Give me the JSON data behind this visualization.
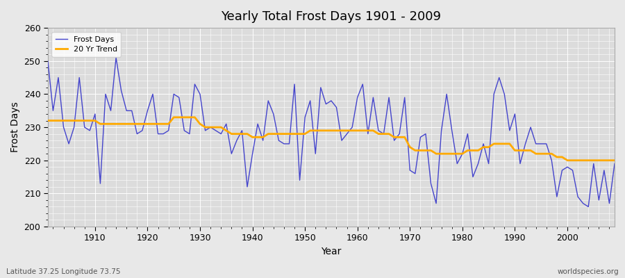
{
  "title": "Yearly Total Frost Days 1901 - 2009",
  "xlabel": "Year",
  "ylabel": "Frost Days",
  "footnote_left": "Latitude 37.25 Longitude 73.75",
  "footnote_right": "worldspecies.org",
  "ylim": [
    200,
    260
  ],
  "xlim": [
    1901,
    2009
  ],
  "bg_color": "#dcdcdc",
  "grid_color": "#ffffff",
  "line_color": "#4444cc",
  "trend_color": "#ffaa00",
  "years": [
    1901,
    1902,
    1903,
    1904,
    1905,
    1906,
    1907,
    1908,
    1909,
    1910,
    1911,
    1912,
    1913,
    1914,
    1915,
    1916,
    1917,
    1918,
    1919,
    1920,
    1921,
    1922,
    1923,
    1924,
    1925,
    1926,
    1927,
    1928,
    1929,
    1930,
    1931,
    1932,
    1933,
    1934,
    1935,
    1936,
    1937,
    1938,
    1939,
    1940,
    1941,
    1942,
    1943,
    1944,
    1945,
    1946,
    1947,
    1948,
    1949,
    1950,
    1951,
    1952,
    1953,
    1954,
    1955,
    1956,
    1957,
    1958,
    1959,
    1960,
    1961,
    1962,
    1963,
    1964,
    1965,
    1966,
    1967,
    1968,
    1969,
    1970,
    1971,
    1972,
    1973,
    1974,
    1975,
    1976,
    1977,
    1978,
    1979,
    1980,
    1981,
    1982,
    1983,
    1984,
    1985,
    1986,
    1987,
    1988,
    1989,
    1990,
    1991,
    1992,
    1993,
    1994,
    1995,
    1996,
    1997,
    1998,
    1999,
    2000,
    2001,
    2002,
    2003,
    2004,
    2005,
    2006,
    2007,
    2008,
    2009
  ],
  "frost_days": [
    250,
    235,
    245,
    230,
    225,
    230,
    245,
    230,
    229,
    234,
    213,
    240,
    235,
    251,
    241,
    235,
    235,
    228,
    229,
    235,
    240,
    228,
    228,
    229,
    240,
    239,
    229,
    228,
    243,
    240,
    229,
    230,
    229,
    228,
    231,
    222,
    226,
    229,
    212,
    222,
    231,
    226,
    238,
    234,
    226,
    225,
    225,
    243,
    214,
    233,
    238,
    222,
    242,
    237,
    238,
    236,
    226,
    228,
    230,
    239,
    243,
    228,
    239,
    229,
    228,
    239,
    226,
    228,
    239,
    217,
    216,
    227,
    228,
    213,
    207,
    229,
    240,
    229,
    219,
    222,
    228,
    215,
    219,
    225,
    219,
    240,
    245,
    240,
    229,
    234,
    219,
    225,
    230,
    225,
    225,
    225,
    220,
    209,
    217,
    218,
    217,
    209,
    207,
    206,
    219,
    208,
    217,
    207,
    219
  ],
  "trend_years": [
    1901,
    1902,
    1903,
    1904,
    1905,
    1906,
    1907,
    1908,
    1909,
    1910,
    1911,
    1912,
    1913,
    1914,
    1915,
    1916,
    1917,
    1918,
    1919,
    1920,
    1921,
    1922,
    1923,
    1924,
    1925,
    1926,
    1927,
    1928,
    1929,
    1930,
    1931,
    1932,
    1933,
    1934,
    1935,
    1936,
    1937,
    1938,
    1939,
    1940,
    1941,
    1942,
    1943,
    1944,
    1945,
    1946,
    1947,
    1948,
    1949,
    1950,
    1951,
    1952,
    1953,
    1954,
    1955,
    1956,
    1957,
    1958,
    1959,
    1960,
    1961,
    1962,
    1963,
    1964,
    1965,
    1966,
    1967,
    1968,
    1969,
    1970,
    1971,
    1972,
    1973,
    1974,
    1975,
    1976,
    1977,
    1978,
    1979,
    1980,
    1981,
    1982,
    1983,
    1984,
    1985,
    1986,
    1987,
    1988,
    1989,
    1990,
    1991,
    1992,
    1993,
    1994,
    1995,
    1996,
    1997,
    1998,
    1999,
    2000,
    2001,
    2002,
    2003,
    2004,
    2005,
    2006,
    2007,
    2008,
    2009
  ],
  "trend_values": [
    232,
    232,
    232,
    232,
    232,
    232,
    232,
    232,
    232,
    232,
    231,
    231,
    231,
    231,
    231,
    231,
    231,
    231,
    231,
    231,
    231,
    231,
    231,
    231,
    233,
    233,
    233,
    233,
    233,
    231,
    230,
    230,
    230,
    230,
    229,
    228,
    228,
    228,
    228,
    227,
    227,
    227,
    228,
    228,
    228,
    228,
    228,
    228,
    228,
    228,
    229,
    229,
    229,
    229,
    229,
    229,
    229,
    229,
    229,
    229,
    229,
    229,
    229,
    228,
    228,
    228,
    227,
    227,
    227,
    224,
    223,
    223,
    223,
    223,
    222,
    222,
    222,
    222,
    222,
    222,
    223,
    223,
    223,
    224,
    224,
    225,
    225,
    225,
    225,
    223,
    223,
    223,
    223,
    222,
    222,
    222,
    222,
    221,
    221,
    220,
    220,
    220,
    220,
    220,
    220,
    220,
    220,
    220,
    220
  ]
}
